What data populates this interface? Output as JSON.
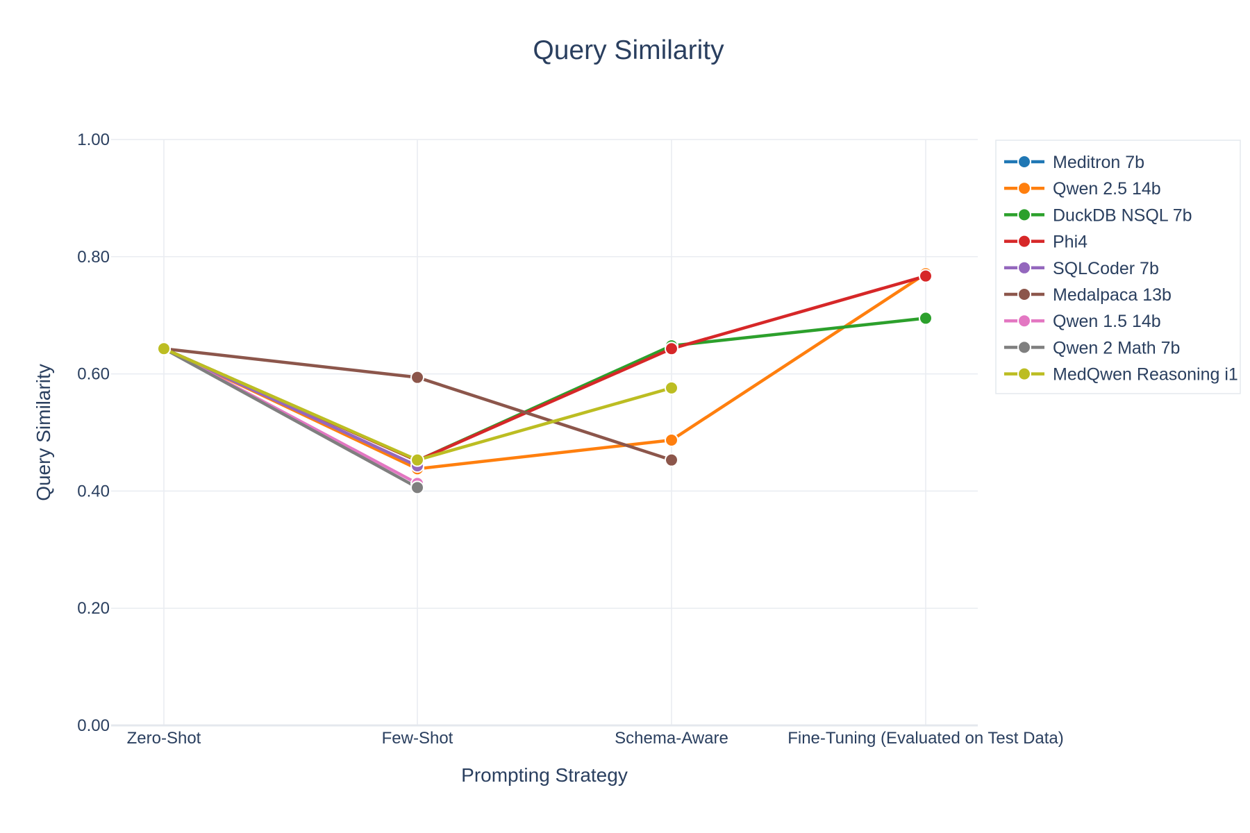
{
  "chart_data": {
    "type": "line",
    "title": "Query Similarity",
    "xlabel": "Prompting Strategy",
    "ylabel": "Query Similarity",
    "categories": [
      "Zero-Shot",
      "Few-Shot",
      "Schema-Aware",
      "Fine-Tuning (Evaluated on Test Data)"
    ],
    "ylim": [
      0,
      1
    ],
    "yticks": [
      0,
      0.2,
      0.4,
      0.6,
      0.8,
      1.0
    ],
    "ytick_labels": [
      "0.00",
      "0.20",
      "0.40",
      "0.60",
      "0.80",
      "1.00"
    ],
    "grid": true,
    "legend_position": "top-right",
    "series": [
      {
        "name": "Meditron 7b",
        "color": "#1f77b4",
        "values": [
          0.643,
          0.452,
          null,
          null
        ]
      },
      {
        "name": "Qwen 2.5 14b",
        "color": "#ff7f0e",
        "values": [
          0.643,
          0.438,
          0.487,
          0.771
        ]
      },
      {
        "name": "DuckDB NSQL 7b",
        "color": "#2ca02c",
        "values": [
          0.643,
          0.452,
          0.648,
          0.695
        ]
      },
      {
        "name": "Phi4",
        "color": "#d62728",
        "values": [
          0.643,
          0.452,
          0.643,
          0.767
        ]
      },
      {
        "name": "SQLCoder 7b",
        "color": "#9467bd",
        "values": [
          0.643,
          0.443,
          null,
          null
        ]
      },
      {
        "name": "Medalpaca 13b",
        "color": "#8c564b",
        "values": [
          0.643,
          0.594,
          0.453,
          null
        ]
      },
      {
        "name": "Qwen 1.5 14b",
        "color": "#e377c2",
        "values": [
          0.643,
          0.413,
          null,
          null
        ]
      },
      {
        "name": "Qwen 2 Math 7b",
        "color": "#7f7f7f",
        "values": [
          0.643,
          0.406,
          null,
          null
        ]
      },
      {
        "name": "MedQwen Reasoning i1",
        "color": "#bcbd22",
        "values": [
          0.643,
          0.453,
          0.576,
          null
        ]
      }
    ]
  }
}
